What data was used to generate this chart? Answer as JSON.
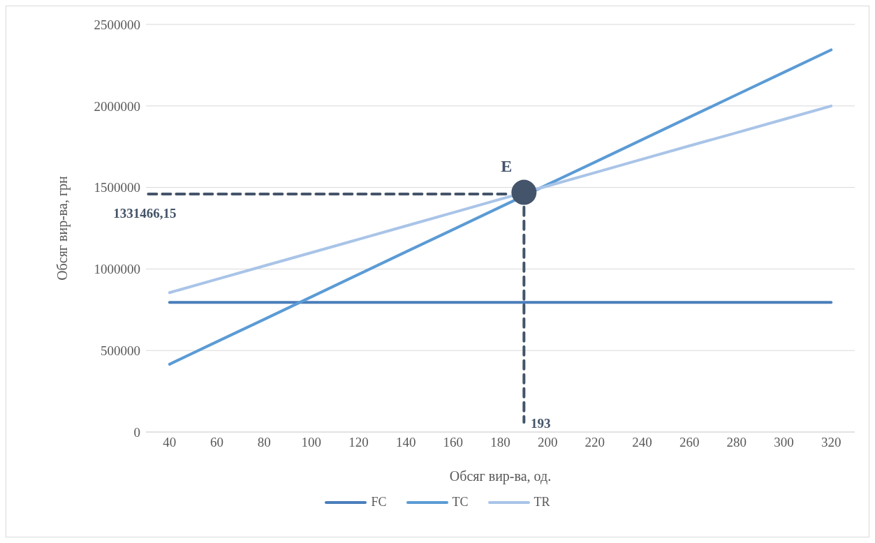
{
  "chart_data": {
    "type": "line",
    "xlabel": "Обсяг вир-ва, од.",
    "ylabel": "Обсяг вир-ва, грн",
    "x": [
      40,
      60,
      80,
      100,
      120,
      140,
      160,
      180,
      200,
      220,
      240,
      260,
      280,
      300,
      320
    ],
    "series": [
      {
        "name": "FC",
        "color": "#4a7ebb",
        "values": [
          795000,
          795000,
          795000,
          795000,
          795000,
          795000,
          795000,
          795000,
          795000,
          795000,
          795000,
          795000,
          795000,
          795000,
          795000
        ]
      },
      {
        "name": "TC",
        "color": "#5b9bd5",
        "values": [
          416000,
          554000,
          691000,
          829000,
          967000,
          1105000,
          1242000,
          1380000,
          1518000,
          1655000,
          1793000,
          1931000,
          2069000,
          2206000,
          2344000
        ]
      },
      {
        "name": "TR",
        "color": "#a9c4e8",
        "values": [
          855000,
          937000,
          1019000,
          1100000,
          1182000,
          1264000,
          1346000,
          1428000,
          1509000,
          1591000,
          1673000,
          1755000,
          1836000,
          1918000,
          2000000
        ]
      },
      {
        "type": "line",
        "line_style": "dashed",
        "color": "#44546a",
        "x": [
          31,
          183
        ],
        "values": [
          1460000,
          1460000
        ]
      },
      {
        "type": "line",
        "line_style": "dashed",
        "color": "#44546a",
        "x": [
          190,
          190
        ],
        "values": [
          1380000,
          60000
        ]
      },
      {
        "type": "scatter",
        "marker": "circle",
        "color": "#44546a",
        "x": [
          190
        ],
        "values": [
          1470000
        ]
      }
    ],
    "annotations": [
      {
        "text": "E",
        "x": 190,
        "y": 1470000
      },
      "1331466,15",
      "193"
    ],
    "xlim": [
      30,
      330
    ],
    "xticks": [
      40,
      60,
      80,
      100,
      120,
      140,
      160,
      180,
      200,
      220,
      240,
      260,
      280,
      300,
      320
    ],
    "ylim": [
      0,
      2500000
    ],
    "yticks": [
      0,
      500000,
      1000000,
      1500000,
      2000000,
      2500000
    ],
    "grid": "y",
    "legend": "bottom"
  }
}
